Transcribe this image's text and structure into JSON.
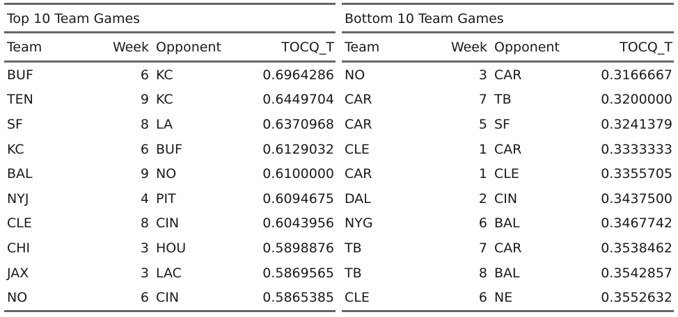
{
  "left": {
    "title": "Top 10 Team Games",
    "headers": [
      "Team",
      "Week",
      "Opponent",
      "TOCQ_T"
    ],
    "rows": [
      [
        "BUF",
        "6",
        "KC",
        "0.6964286"
      ],
      [
        "TEN",
        "9",
        "KC",
        "0.6449704"
      ],
      [
        "SF",
        "8",
        "LA",
        "0.6370968"
      ],
      [
        "KC",
        "6",
        "BUF",
        "0.6129032"
      ],
      [
        "BAL",
        "9",
        "NO",
        "0.6100000"
      ],
      [
        "NYJ",
        "4",
        "PIT",
        "0.6094675"
      ],
      [
        "CLE",
        "8",
        "CIN",
        "0.6043956"
      ],
      [
        "CHI",
        "3",
        "HOU",
        "0.5898876"
      ],
      [
        "JAX",
        "3",
        "LAC",
        "0.5869565"
      ],
      [
        "NO",
        "6",
        "CIN",
        "0.5865385"
      ]
    ]
  },
  "right": {
    "title": "Bottom 10 Team Games",
    "headers": [
      "Team",
      "Week",
      "Opponent",
      "TOCQ_T"
    ],
    "rows": [
      [
        "NO",
        "3",
        "CAR",
        "0.3166667"
      ],
      [
        "CAR",
        "7",
        "TB",
        "0.3200000"
      ],
      [
        "CAR",
        "5",
        "SF",
        "0.3241379"
      ],
      [
        "CLE",
        "1",
        "CAR",
        "0.3333333"
      ],
      [
        "CAR",
        "1",
        "CLE",
        "0.3355705"
      ],
      [
        "DAL",
        "2",
        "CIN",
        "0.3437500"
      ],
      [
        "NYG",
        "6",
        "BAL",
        "0.3467742"
      ],
      [
        "TB",
        "7",
        "CAR",
        "0.3538462"
      ],
      [
        "TB",
        "8",
        "BAL",
        "0.3542857"
      ],
      [
        "CLE",
        "6",
        "NE",
        "0.3552632"
      ]
    ]
  }
}
